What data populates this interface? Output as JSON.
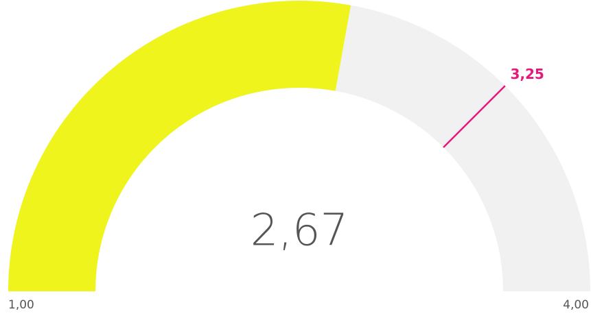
{
  "chart_data": {
    "type": "gauge",
    "min": {
      "value": 1,
      "label": "1,00"
    },
    "max": {
      "value": 4,
      "label": "4,00"
    },
    "value": {
      "value": 2.67,
      "label": "2,67"
    },
    "target": {
      "value": 3.25,
      "label": "3,25"
    },
    "color": "#eff51c",
    "track_color": "#f1f1f1",
    "target_color": "#e8177a"
  }
}
